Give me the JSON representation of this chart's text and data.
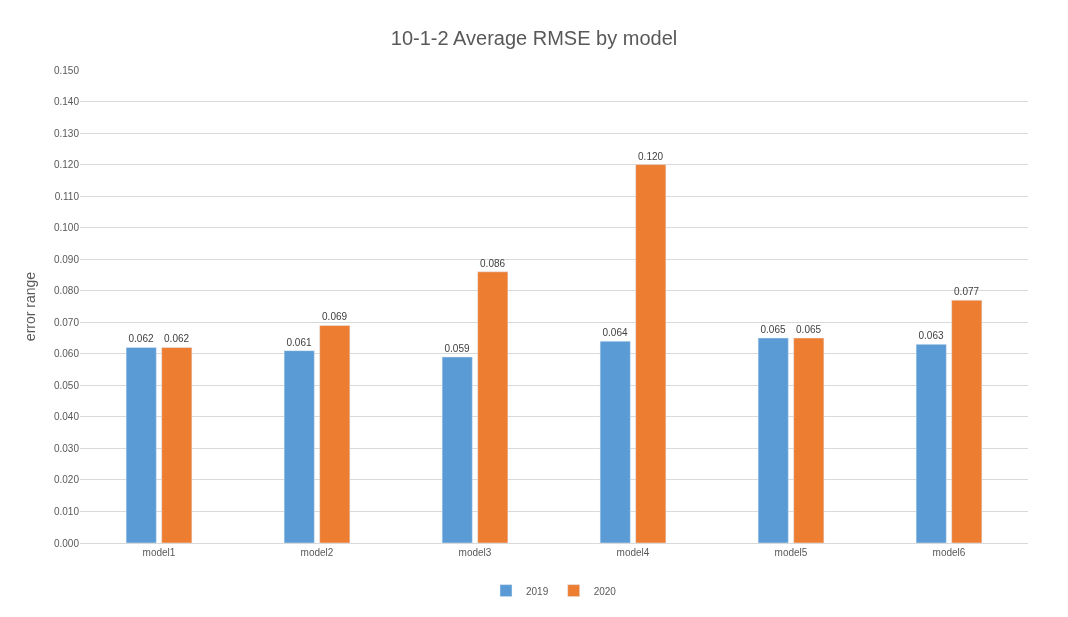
{
  "chart_data": {
    "type": "bar",
    "title": "10-1-2 Average RMSE by model",
    "ylabel": "error range",
    "categories": [
      "model1",
      "model2",
      "model3",
      "model4",
      "model5",
      "model6"
    ],
    "series": [
      {
        "name": "2019",
        "color": "#5b9bd5",
        "values": [
          0.062,
          0.061,
          0.059,
          0.064,
          0.065,
          0.063
        ],
        "value_labels": [
          "0.062",
          "0.061",
          "0.059",
          "0.064",
          "0.065",
          "0.063"
        ]
      },
      {
        "name": "2020",
        "color": "#ed7d31",
        "values": [
          0.062,
          0.069,
          0.086,
          0.12,
          0.065,
          0.077
        ],
        "value_labels": [
          "0.062",
          "0.069",
          "0.086",
          "0.120",
          "0.065",
          "0.077"
        ]
      }
    ],
    "ylim": [
      0,
      0.15
    ],
    "yticks": [
      {
        "value": 0,
        "label": "0.000"
      },
      {
        "value": 0.01,
        "label": "0.010"
      },
      {
        "value": 0.02,
        "label": "0.020"
      },
      {
        "value": 0.03,
        "label": "0.030"
      },
      {
        "value": 0.04,
        "label": "0.040"
      },
      {
        "value": 0.05,
        "label": "0.050"
      },
      {
        "value": 0.06,
        "label": "0.060"
      },
      {
        "value": 0.07,
        "label": "0.070"
      },
      {
        "value": 0.08,
        "label": "0.080"
      },
      {
        "value": 0.09,
        "label": "0.090"
      },
      {
        "value": 0.1,
        "label": "0.100"
      },
      {
        "value": 0.11,
        "label": "0.110"
      },
      {
        "value": 0.12,
        "label": "0.120"
      },
      {
        "value": 0.13,
        "label": "0.130"
      },
      {
        "value": 0.14,
        "label": "0.140"
      },
      {
        "value": 0.15,
        "label": "0.150"
      }
    ],
    "grid": "y",
    "legend": "bottom"
  }
}
